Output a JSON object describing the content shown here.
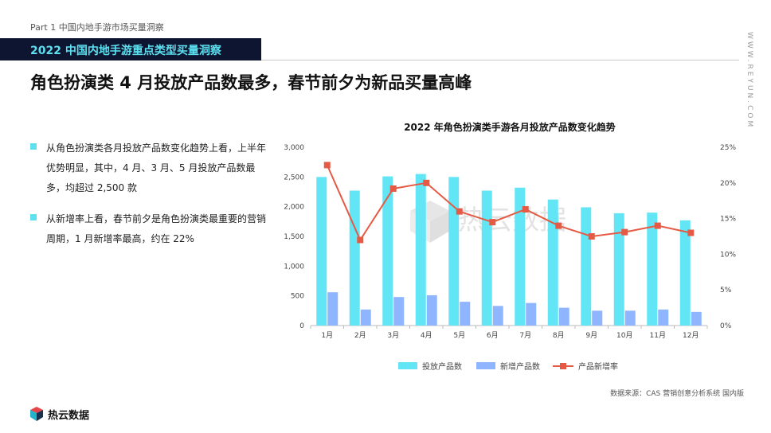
{
  "header": {
    "part_label": "Part 1  中国内地手游市场买量洞察",
    "section_title": "2022 中国内地手游重点类型买量洞察",
    "side_url": "WWW.REYUN.COM"
  },
  "headline": "角色扮演类  4 月投放产品数最多，春节前夕为新品买量高峰",
  "bullets": [
    "从角色扮演类各月投放产品数变化趋势上看，上半年优势明显，其中，4 月、3 月、5 月投放产品数最多，均超过 2,500 款",
    "从新增率上看，春节前夕是角色扮演类最重要的营销周期，1 月新增率最高，约在 22%"
  ],
  "source": "数据来源：CAS 营销创意分析系统 国内版",
  "logo": {
    "text": "热云数据",
    "watermark": "热云数据"
  },
  "colors": {
    "bar_total": "#62e6f5",
    "bar_new": "#8fb5ff",
    "line": "#e55a44",
    "banner_bg": "#0e1530",
    "banner_text": "#5ce0f0"
  },
  "chart_data": {
    "type": "bar",
    "title": "2022 年角色扮演类手游各月投放产品数变化趋势",
    "categories": [
      "1月",
      "2月",
      "3月",
      "4月",
      "5月",
      "6月",
      "7月",
      "8月",
      "9月",
      "10月",
      "11月",
      "12月"
    ],
    "series": [
      {
        "name": "投放产品数",
        "type": "bar",
        "axis": "left",
        "values": [
          2500,
          2270,
          2510,
          2550,
          2500,
          2270,
          2320,
          2120,
          1990,
          1890,
          1900,
          1770
        ]
      },
      {
        "name": "新增产品数",
        "type": "bar",
        "axis": "left",
        "values": [
          560,
          270,
          480,
          510,
          400,
          330,
          380,
          300,
          250,
          250,
          270,
          230
        ]
      },
      {
        "name": "产品新增率",
        "type": "line",
        "axis": "right",
        "values": [
          22.5,
          12.0,
          19.2,
          20.0,
          16.0,
          14.5,
          16.3,
          14.0,
          12.5,
          13.1,
          14.0,
          13.0
        ]
      }
    ],
    "y_left": {
      "ylim": [
        0,
        3000
      ],
      "ticks": [
        "0",
        "500",
        "1,000",
        "1,500",
        "2,000",
        "2,500",
        "3,000"
      ]
    },
    "y_right": {
      "ylim": [
        0,
        25
      ],
      "ticks": [
        "0%",
        "5%",
        "10%",
        "15%",
        "20%",
        "25%"
      ]
    },
    "legend_position": "bottom",
    "grid": false
  }
}
